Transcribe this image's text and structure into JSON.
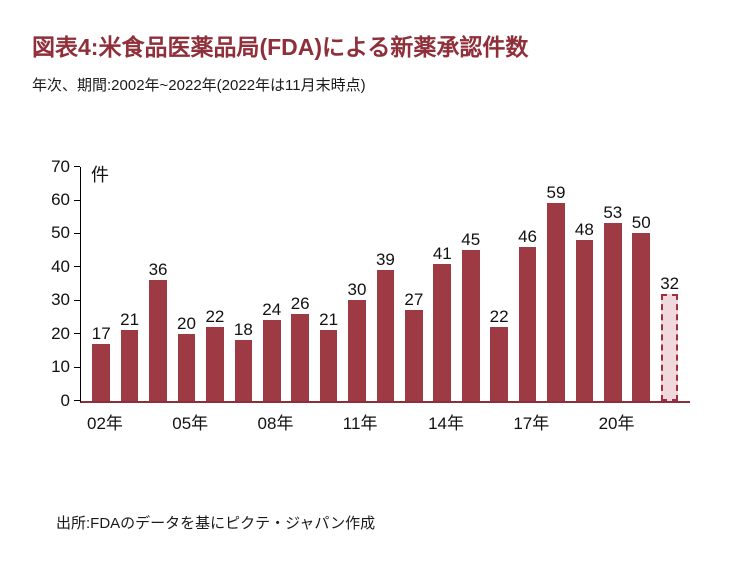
{
  "header": {
    "title": "図表4:米食品医薬品局(FDA)による新薬承認件数",
    "subtitle": "年次、期間:2002年~2022年(2022年は11月末時点)"
  },
  "footer": {
    "source": "出所:FDAのデータを基にピクテ・ジャパン作成"
  },
  "chart_data": {
    "type": "bar",
    "title": "米食品医薬品局(FDA)による新薬承認件数",
    "unit_label": "件",
    "categories": [
      "2002",
      "2003",
      "2004",
      "2005",
      "2006",
      "2007",
      "2008",
      "2009",
      "2010",
      "2011",
      "2012",
      "2013",
      "2014",
      "2015",
      "2016",
      "2017",
      "2018",
      "2019",
      "2020",
      "2021",
      "2022"
    ],
    "values": [
      17,
      21,
      36,
      20,
      22,
      18,
      24,
      26,
      21,
      30,
      39,
      27,
      41,
      45,
      22,
      46,
      59,
      48,
      53,
      50,
      32
    ],
    "ylim": [
      0,
      70
    ],
    "y_ticks": [
      0,
      10,
      20,
      30,
      40,
      50,
      60,
      70
    ],
    "x_tick_labels": [
      {
        "index": 0,
        "label": "02年"
      },
      {
        "index": 3,
        "label": "05年"
      },
      {
        "index": 6,
        "label": "08年"
      },
      {
        "index": 9,
        "label": "11年"
      },
      {
        "index": 12,
        "label": "14年"
      },
      {
        "index": 15,
        "label": "17年"
      },
      {
        "index": 18,
        "label": "20年"
      }
    ],
    "partial_bar_index": 20,
    "grid": false,
    "legend": "none",
    "colors": {
      "bar": "#9d3a43",
      "partial_fill": "#f0d8dc",
      "partial_border": "#9d2f3f",
      "axis": "#8d2f3a",
      "title": "#8e2f3a"
    }
  }
}
